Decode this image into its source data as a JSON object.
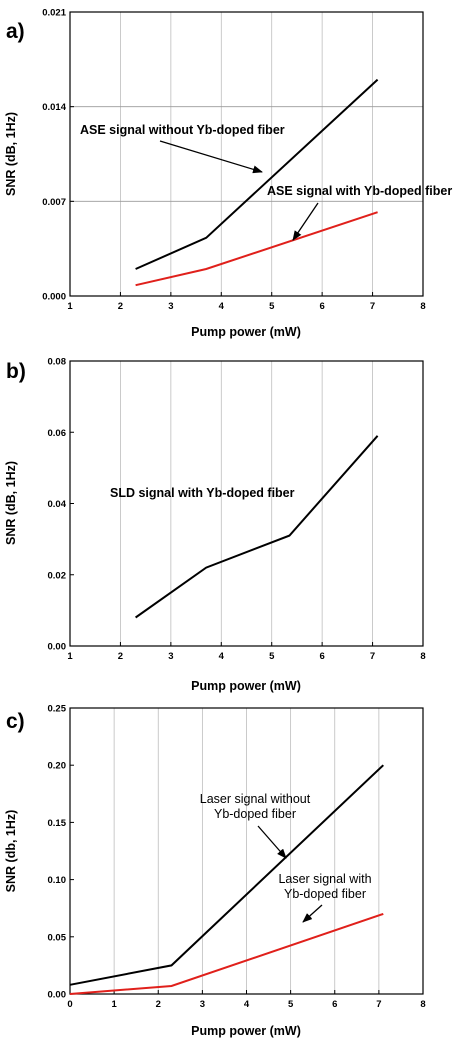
{
  "chart_data": [
    {
      "type": "line",
      "panel_label": "a)",
      "xlabel": "Pump power (mW)",
      "ylabel": "SNR (dB, 1Hz)",
      "xlim": [
        1,
        8
      ],
      "ylim": [
        0,
        0.021
      ],
      "x_ticks": [
        "1",
        "2",
        "3",
        "4",
        "5",
        "6",
        "7",
        "8"
      ],
      "y_ticks": [
        "0.000",
        "0.007",
        "0.014",
        "0.021"
      ],
      "grid": "vertical lines at every x tick; horizontal lines at every y tick",
      "legend": "none",
      "series": [
        {
          "color": "#000000",
          "x": [
            2.3,
            3.7,
            7.1
          ],
          "y": [
            0.002,
            0.0043,
            0.016
          ]
        },
        {
          "color": "#e0201b",
          "x": [
            2.3,
            3.7,
            7.1
          ],
          "y": [
            0.0008,
            0.002,
            0.0062
          ]
        }
      ],
      "annotations": [
        {
          "text": "ASE signal without Yb-doped fiber",
          "weight": "bold"
        },
        {
          "text": "ASE signal with Yb-doped fiber",
          "weight": "bold"
        }
      ]
    },
    {
      "type": "line",
      "panel_label": "b)",
      "xlabel": "Pump power (mW)",
      "ylabel": "SNR (dB, 1Hz)",
      "xlim": [
        1,
        8
      ],
      "ylim": [
        0,
        0.08
      ],
      "x_ticks": [
        "1",
        "2",
        "3",
        "4",
        "5",
        "6",
        "7",
        "8"
      ],
      "y_ticks": [
        "0.00",
        "0.02",
        "0.04",
        "0.06",
        "0.08"
      ],
      "grid": "vertical lines at every x tick",
      "legend": "none",
      "series": [
        {
          "color": "#000000",
          "x": [
            2.3,
            3.7,
            5.35,
            7.1
          ],
          "y": [
            0.008,
            0.022,
            0.031,
            0.059
          ]
        }
      ],
      "annotations": [
        {
          "text": "SLD signal with Yb-doped fiber",
          "weight": "bold"
        }
      ]
    },
    {
      "type": "line",
      "panel_label": "c)",
      "xlabel": "Pump power (mW)",
      "ylabel": "SNR (db, 1Hz)",
      "xlim": [
        0,
        8
      ],
      "ylim": [
        0,
        0.25
      ],
      "x_ticks": [
        "0",
        "1",
        "2",
        "3",
        "4",
        "5",
        "6",
        "7",
        "8"
      ],
      "y_ticks": [
        "0.00",
        "0.05",
        "0.10",
        "0.15",
        "0.20",
        "0.25"
      ],
      "grid": "vertical lines at every x tick",
      "legend": "none",
      "series": [
        {
          "color": "#000000",
          "x": [
            0,
            2.3,
            7.1
          ],
          "y": [
            0.008,
            0.025,
            0.2
          ]
        },
        {
          "color": "#e0201b",
          "x": [
            0,
            2.3,
            7.1
          ],
          "y": [
            0.0,
            0.007,
            0.07
          ]
        }
      ],
      "annotations": [
        {
          "lines": [
            "Laser signal without",
            "Yb-doped fiber"
          ],
          "weight": "normal"
        },
        {
          "lines": [
            "Laser signal with",
            "Yb-doped fiber"
          ],
          "weight": "normal"
        }
      ]
    }
  ]
}
